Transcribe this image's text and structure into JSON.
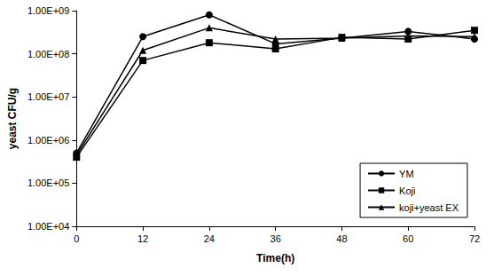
{
  "chart_data": {
    "type": "line",
    "x_label": "Time(h)",
    "y_label": "yeast CFU/g",
    "log": "y",
    "grid": false,
    "legend": "bottom-right",
    "xlim": [
      0,
      72
    ],
    "xticks": [
      0,
      12,
      24,
      36,
      48,
      60,
      72
    ],
    "ylim": [
      10000,
      1000000000
    ],
    "yticks": [
      {
        "value": 10000,
        "label": "1.00E+04"
      },
      {
        "value": 100000,
        "label": "1.00E+05"
      },
      {
        "value": 1000000,
        "label": "1.00E+06"
      },
      {
        "value": 10000000,
        "label": "1.00E+07"
      },
      {
        "value": 100000000,
        "label": "1.00E+08"
      },
      {
        "value": 1000000000,
        "label": "1.00E+09"
      }
    ],
    "x": [
      0,
      12,
      24,
      36,
      48,
      60,
      72
    ],
    "series": [
      {
        "name": "YM",
        "color": "#000000",
        "marker": "circle",
        "values": [
          500000,
          250000000,
          800000000,
          170000000,
          230000000,
          330000000,
          220000000
        ]
      },
      {
        "name": "Koji",
        "color": "#000000",
        "marker": "square",
        "values": [
          400000,
          70000000,
          180000000,
          130000000,
          240000000,
          220000000,
          350000000
        ]
      },
      {
        "name": "koji+yeast EX",
        "color": "#000000",
        "marker": "triangle",
        "values": [
          450000,
          120000000,
          400000000,
          220000000,
          230000000,
          260000000,
          250000000
        ]
      }
    ]
  }
}
